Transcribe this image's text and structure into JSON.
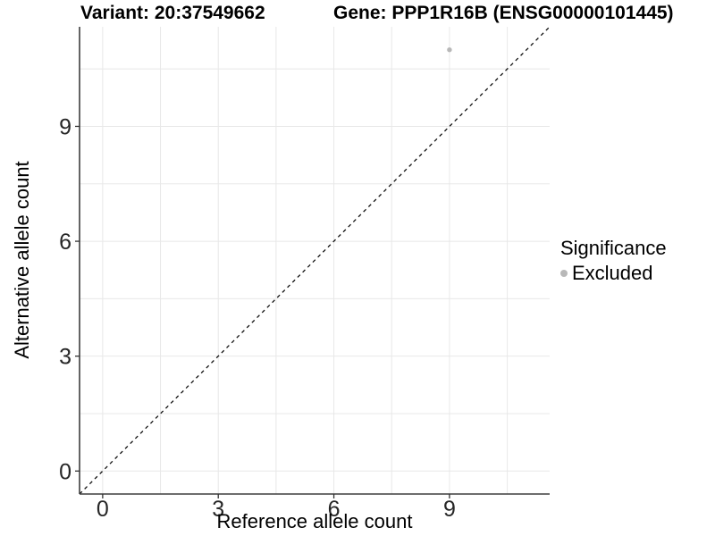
{
  "header": {
    "title_left": "Variant: 20:37549662",
    "title_right": "Gene: PPP1R16B (ENSG00000101445)"
  },
  "chart_data": {
    "type": "scatter",
    "titles": [
      "Variant: 20:37549662",
      "Gene: PPP1R16B (ENSG00000101445)"
    ],
    "xlabel": "Reference allele count",
    "ylabel": "Alternative allele count",
    "xlim": [
      -0.6,
      11.6
    ],
    "ylim": [
      -0.6,
      11.6
    ],
    "x_ticks": [
      0,
      3,
      6,
      9
    ],
    "y_ticks": [
      0,
      3,
      6,
      9
    ],
    "x_minor_ticks": [
      1.5,
      4.5,
      7.5,
      10.5
    ],
    "y_minor_ticks": [
      1.5,
      4.5,
      7.5,
      10.5
    ],
    "grid": "major and minor gridlines, white panel background",
    "identity_line": {
      "type": "abline",
      "slope": 1,
      "intercept": 0,
      "style": "dashed",
      "color": "#111111"
    },
    "series": [
      {
        "name": "Excluded",
        "color": "#b8b8b8",
        "points": [
          [
            9,
            11
          ]
        ]
      }
    ],
    "legend": {
      "title": "Significance",
      "position": "right",
      "entries": [
        {
          "label": "Excluded",
          "color": "#b8b8b8",
          "marker": "circle"
        }
      ]
    },
    "colors": {
      "gridline": "#e8e8e8",
      "axis_line": "#3d3d3d",
      "tick_mark": "#333333",
      "tick_label": "#262626",
      "background": "#ffffff"
    }
  }
}
